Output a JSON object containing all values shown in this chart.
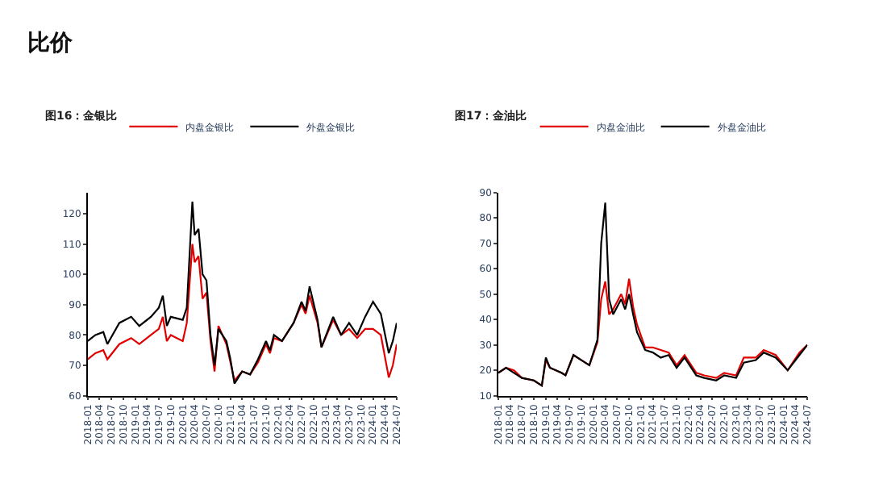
{
  "chart_data": [
    {
      "type": "line",
      "title": "图16：金银比",
      "annotations": [
        "比价"
      ],
      "legend": "top",
      "grid": false,
      "marker": "none",
      "line_style": "solid",
      "x": [
        "2018-01",
        "2018-03",
        "2018-05",
        "2018-06",
        "2018-09",
        "2018-12",
        "2019-02",
        "2019-05",
        "2019-07",
        "2019-08",
        "2019-09",
        "2019-10",
        "2020-01",
        "2020-02",
        "2020-03-15",
        "2020-04",
        "2020-05",
        "2020-06",
        "2020-07",
        "2020-08",
        "2020-09",
        "2020-10",
        "2020-12",
        "2021-01",
        "2021-02",
        "2021-04",
        "2021-06",
        "2021-08",
        "2021-10",
        "2021-11",
        "2021-12",
        "2022-02",
        "2022-05",
        "2022-07",
        "2022-08",
        "2022-09",
        "2022-11",
        "2022-12",
        "2023-03",
        "2023-05",
        "2023-07",
        "2023-09",
        "2023-11",
        "2024-01",
        "2024-03",
        "2024-05",
        "2024-06",
        "2024-07"
      ],
      "series": [
        {
          "name": "内盘金银比",
          "color": "#e00000",
          "values": [
            72,
            74,
            75,
            72,
            77,
            79,
            77,
            80,
            82,
            86,
            78,
            80,
            78,
            84,
            110,
            104,
            106,
            92,
            94,
            78,
            68,
            83,
            77,
            71,
            65,
            68,
            67,
            71,
            77,
            74,
            79,
            78,
            84,
            90,
            87,
            93,
            84,
            76,
            85,
            80,
            82,
            79,
            82,
            82,
            80,
            66,
            70,
            77
          ]
        },
        {
          "name": "外盘金银比",
          "color": "#000000",
          "values": [
            78,
            80,
            81,
            77,
            84,
            86,
            83,
            86,
            89,
            93,
            83,
            86,
            85,
            89,
            124,
            113,
            115,
            100,
            98,
            80,
            70,
            82,
            78,
            72,
            64,
            68,
            67,
            72,
            78,
            75,
            80,
            78,
            84,
            91,
            88,
            96,
            85,
            76,
            86,
            80,
            84,
            80,
            86,
            91,
            87,
            74,
            78,
            84
          ]
        }
      ],
      "xlim": [
        "2018-01",
        "2024-07"
      ],
      "xticks": [
        "2018-01",
        "2018-04",
        "2018-07",
        "2018-10",
        "2019-01",
        "2019-04",
        "2019-07",
        "2019-10",
        "2020-01",
        "2020-04",
        "2020-07",
        "2020-10",
        "2021-01",
        "2021-04",
        "2021-07",
        "2021-10",
        "2022-01",
        "2022-04",
        "2022-07",
        "2022-10",
        "2023-01",
        "2023-04",
        "2023-07",
        "2023-10",
        "2024-01",
        "2024-04",
        "2024-07"
      ],
      "ylim": [
        60,
        127
      ],
      "yticks": [
        60,
        70,
        80,
        90,
        100,
        110,
        120
      ]
    },
    {
      "type": "line",
      "title": "图17：金油比",
      "legend": "top",
      "grid": false,
      "marker": "none",
      "line_style": "solid",
      "x": [
        "2018-01",
        "2018-03",
        "2018-05",
        "2018-07",
        "2018-10",
        "2018-12",
        "2019-01",
        "2019-02",
        "2019-05",
        "2019-06",
        "2019-08",
        "2019-10",
        "2019-12",
        "2020-02",
        "2020-03",
        "2020-04",
        "2020-05",
        "2020-06",
        "2020-08",
        "2020-09",
        "2020-10",
        "2020-11",
        "2020-12",
        "2021-02",
        "2021-04",
        "2021-06",
        "2021-08",
        "2021-10",
        "2021-12",
        "2022-03",
        "2022-05",
        "2022-08",
        "2022-10",
        "2023-01",
        "2023-03",
        "2023-06",
        "2023-08",
        "2023-11",
        "2024-02",
        "2024-05",
        "2024-07"
      ],
      "series": [
        {
          "name": "内盘金油比",
          "color": "#e00000",
          "values": [
            19,
            21,
            20,
            17,
            16,
            14,
            24,
            21,
            19,
            18,
            26,
            24,
            22,
            31,
            48,
            55,
            42,
            44,
            50,
            46,
            56,
            45,
            38,
            29,
            29,
            28,
            27,
            22,
            26,
            19,
            18,
            17,
            19,
            18,
            25,
            25,
            28,
            26,
            20,
            27,
            30
          ]
        },
        {
          "name": "外盘金油比",
          "color": "#000000",
          "values": [
            19,
            21,
            19,
            17,
            16,
            14,
            25,
            21,
            19,
            18,
            26,
            24,
            22,
            32,
            70,
            86,
            48,
            42,
            48,
            44,
            50,
            42,
            35,
            28,
            27,
            25,
            26,
            21,
            25,
            18,
            17,
            16,
            18,
            17,
            23,
            24,
            27,
            25,
            20,
            26,
            30
          ]
        }
      ],
      "xlim": [
        "2018-01",
        "2024-07"
      ],
      "xticks": [
        "2018-01",
        "2018-04",
        "2018-07",
        "2018-10",
        "2019-01",
        "2019-04",
        "2019-07",
        "2019-10",
        "2020-01",
        "2020-04",
        "2020-07",
        "2020-10",
        "2021-01",
        "2021-04",
        "2021-07",
        "2021-10",
        "2022-01",
        "2022-04",
        "2022-07",
        "2022-10",
        "2023-01",
        "2023-04",
        "2023-07",
        "2023-10",
        "2024-01",
        "2024-04",
        "2024-07"
      ],
      "ylim": [
        10,
        90
      ],
      "yticks": [
        10,
        20,
        30,
        40,
        50,
        60,
        70,
        80,
        90
      ]
    }
  ]
}
